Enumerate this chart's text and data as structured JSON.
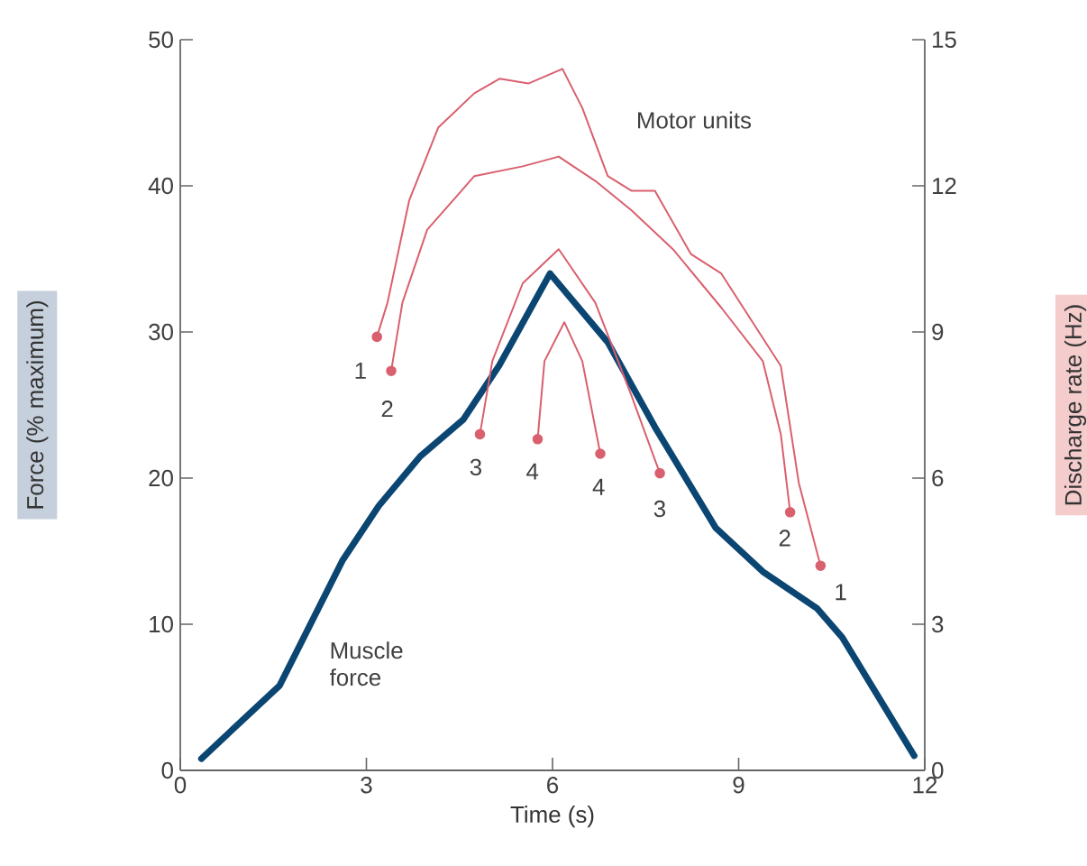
{
  "chart_data": {
    "type": "line",
    "xlabel": "Time (s)",
    "ylabel": "Force (% maximum)",
    "y2label": "Discharge rate (Hz)",
    "xlim": [
      0,
      12
    ],
    "xticks": [
      0,
      3,
      6,
      9,
      12
    ],
    "ylim": [
      0,
      50
    ],
    "yticks": [
      0,
      10,
      20,
      30,
      40,
      50
    ],
    "y2lim": [
      0,
      15
    ],
    "y2ticks": [
      0,
      3,
      6,
      9,
      12,
      15
    ],
    "grid": false,
    "series": [
      {
        "color": "#0b4673",
        "x": [
          0.34,
          1.6,
          2.62,
          3.2,
          3.87,
          4.56,
          5.14,
          5.96,
          6.89,
          7.65,
          8.63,
          9.39,
          10.26,
          10.67,
          11.83
        ],
        "values": [
          0.8,
          5.8,
          14.4,
          18.1,
          21.5,
          24.0,
          27.7,
          34.0,
          29.3,
          23.5,
          16.6,
          13.6,
          11.1,
          9.1,
          1.0
        ]
      },
      {
        "color": "#d9606e",
        "axis": "y2",
        "x": [
          3.17,
          3.34,
          3.69,
          4.16,
          4.74,
          5.15,
          5.61,
          6.16,
          6.48,
          6.89,
          7.27,
          7.65,
          8.23,
          8.72,
          9.68,
          9.97,
          10.32
        ],
        "values": [
          8.9,
          9.6,
          11.7,
          13.2,
          13.9,
          14.2,
          14.1,
          14.4,
          13.6,
          12.2,
          11.9,
          11.9,
          10.6,
          10.2,
          8.3,
          5.9,
          4.2
        ]
      },
      {
        "color": "#d9606e",
        "axis": "y2",
        "x": [
          3.4,
          3.58,
          3.98,
          4.74,
          5.52,
          6.1,
          6.69,
          7.27,
          7.94,
          8.72,
          9.39,
          9.68,
          9.83
        ],
        "values": [
          8.2,
          9.6,
          11.1,
          12.2,
          12.4,
          12.6,
          12.1,
          11.5,
          10.7,
          9.5,
          8.4,
          6.9,
          5.3
        ]
      },
      {
        "color": "#d9606e",
        "axis": "y2",
        "x": [
          4.83,
          5.03,
          5.52,
          6.1,
          6.69,
          7.27,
          7.73
        ],
        "values": [
          6.9,
          8.4,
          10.0,
          10.7,
          9.6,
          7.7,
          6.1
        ]
      },
      {
        "color": "#d9606e",
        "axis": "y2",
        "x": [
          5.76,
          5.87,
          6.19,
          6.48,
          6.77
        ],
        "values": [
          6.8,
          8.4,
          9.2,
          8.4,
          6.5
        ]
      },
      {
        "type": "scatter",
        "color": "#d9606e",
        "axis": "y2",
        "marker": "circle",
        "x": [
          3.17,
          10.32,
          3.4,
          9.83,
          4.83,
          7.73,
          5.76,
          6.77
        ],
        "values": [
          8.9,
          4.2,
          8.2,
          5.3,
          6.9,
          6.1,
          6.8,
          6.5
        ]
      }
    ],
    "annotations": [
      "Motor units",
      "Muscle force",
      "1",
      "2",
      "3",
      "4",
      "4",
      "3",
      "2",
      "1"
    ]
  }
}
